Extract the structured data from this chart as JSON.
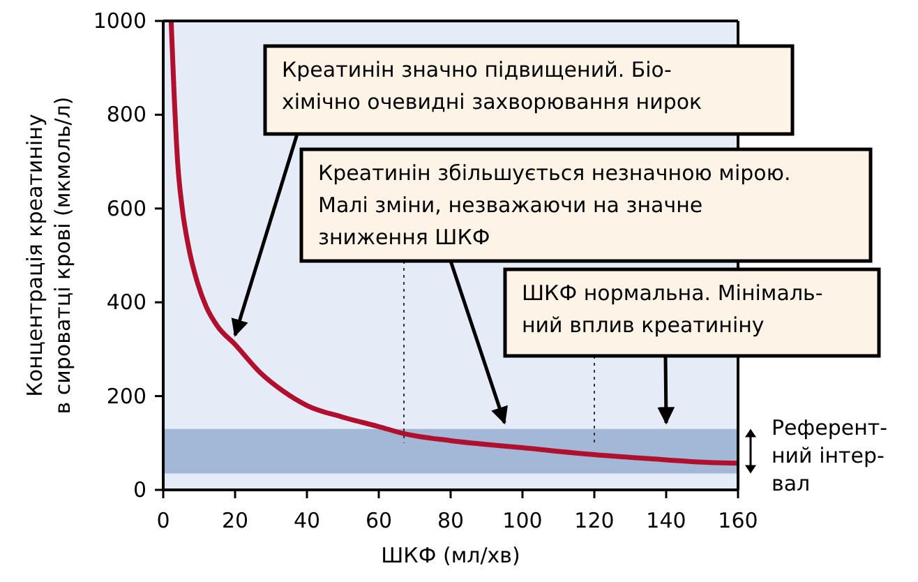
{
  "chart_data": {
    "type": "line",
    "xlabel": "ШКФ (мл/хв)",
    "ylabel": "Концентрація креатиніну\nв сироватці крові (мкмоль/л)",
    "x": [
      2.2,
      3,
      4,
      5.3,
      7,
      9.6,
      12,
      15,
      20,
      27,
      33.5,
      40,
      50,
      60,
      67,
      80,
      100,
      120,
      140,
      150,
      160
    ],
    "series": [
      {
        "color": "#b0102e",
        "values": [
          1000,
          850,
          700,
          600,
          520,
          440,
          390,
          350,
          310,
          250,
          210,
          180,
          155,
          135,
          120,
          105,
          90,
          75,
          64,
          59,
          57
        ]
      }
    ],
    "xlim": [
      0,
      160
    ],
    "xticks": [
      0,
      20,
      40,
      60,
      80,
      100,
      120,
      140,
      160
    ],
    "ylim": [
      0,
      1000
    ],
    "yticks": [
      0,
      200,
      400,
      600,
      800,
      1000
    ],
    "bands": [
      {
        "axis": "y",
        "from": 35,
        "to": 130,
        "label": "Референт-\nний інтер-\nвал",
        "color": "#a3b8d6"
      }
    ],
    "ref_lines": [
      {
        "axis": "x",
        "value": 67,
        "line_style": "dotted"
      },
      {
        "axis": "x",
        "value": 120,
        "line_style": "dotted"
      }
    ],
    "annotations": [
      {
        "text": "Креатинін значно підвищений. Біо-\nхімічно очевидні захворювання нирок",
        "x": 20,
        "y": 330
      },
      {
        "text": "Креатинін збільшується незначною мірою.\nМалі зміни, незважаючи на значне\nзниження ШКФ",
        "x": 95,
        "y": 143
      },
      {
        "text": "ШКФ нормальна. Мінімаль-\nний вплив креатиніну",
        "x": 140,
        "y": 143
      }
    ],
    "grid": false,
    "marker": "none",
    "line_style": "solid"
  }
}
